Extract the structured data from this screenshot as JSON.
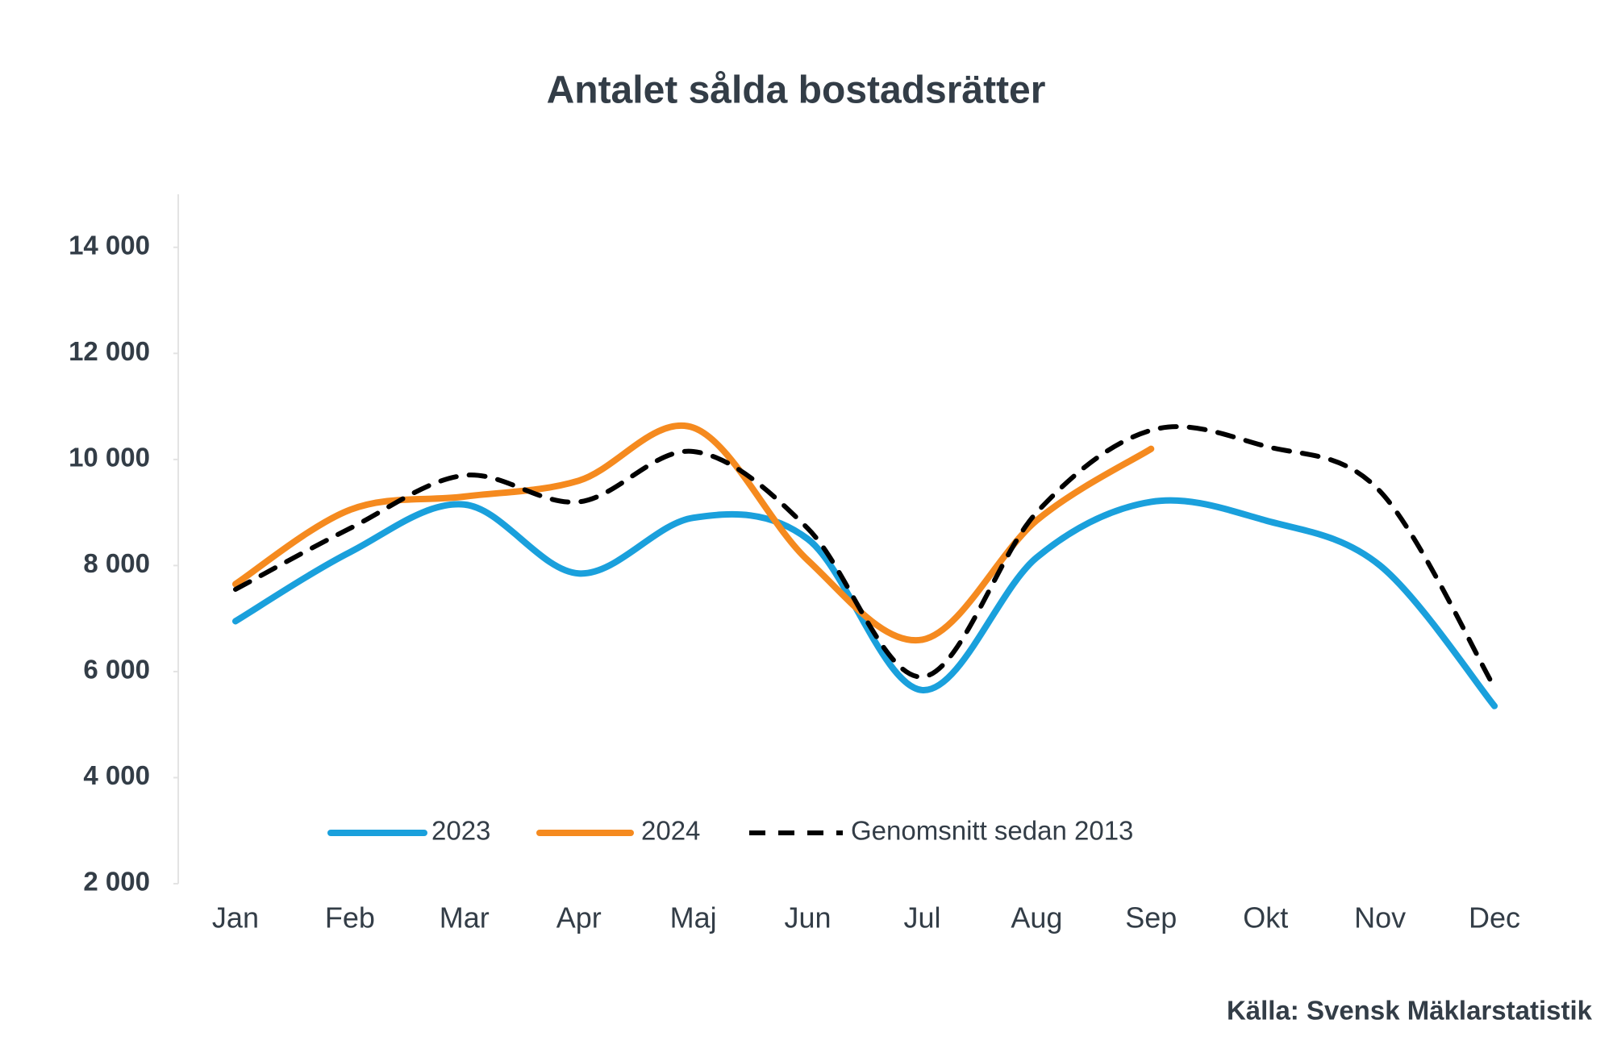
{
  "chart_data": {
    "type": "line",
    "title": "Antalet sålda bostadsrätter",
    "categories": [
      "Jan",
      "Feb",
      "Mar",
      "Apr",
      "Maj",
      "Jun",
      "Jul",
      "Aug",
      "Sep",
      "Okt",
      "Nov",
      "Dec"
    ],
    "series": [
      {
        "name": "2023",
        "color": "#1aa0dc",
        "dash": false,
        "values": [
          6950,
          8250,
          9150,
          7850,
          8900,
          8500,
          5650,
          8150,
          9200,
          8850,
          8000,
          5350
        ]
      },
      {
        "name": "2024",
        "color": "#f58a1f",
        "dash": false,
        "values": [
          7650,
          9050,
          9300,
          9600,
          10600,
          8100,
          6600,
          8850,
          10200,
          null,
          null,
          null
        ]
      },
      {
        "name": "Genomsnitt sedan 2013",
        "color": "#000000",
        "dash": true,
        "values": [
          7550,
          8700,
          9700,
          9200,
          10150,
          8700,
          5900,
          9000,
          10550,
          10250,
          9400,
          5700
        ]
      }
    ],
    "ylim": [
      2000,
      15000
    ],
    "yticks": [
      {
        "value": 2000,
        "label": "2 000"
      },
      {
        "value": 4000,
        "label": "4 000"
      },
      {
        "value": 6000,
        "label": "6 000"
      },
      {
        "value": 8000,
        "label": "8 000"
      },
      {
        "value": 10000,
        "label": "10 000"
      },
      {
        "value": 12000,
        "label": "12 000"
      },
      {
        "value": 14000,
        "label": "14 000"
      }
    ],
    "grid": false,
    "legend": "bottom",
    "source": "Källa: Svensk Mäklarstatistik"
  }
}
